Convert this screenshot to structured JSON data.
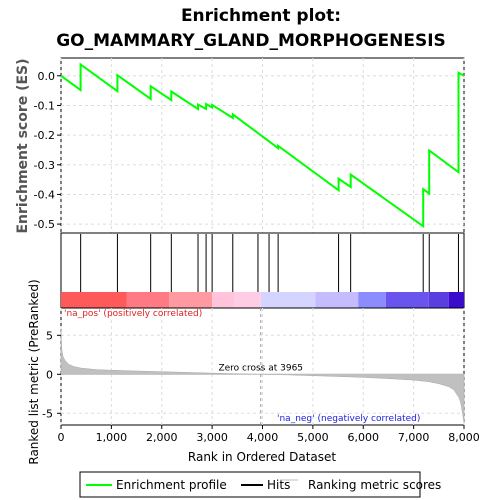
{
  "chart_data": {
    "type": "line",
    "title": "Enrichment plot:",
    "subtitle": "GO_MAMMARY_GLAND_MORPHOGENESIS",
    "es_panel": {
      "ylabel": "Enrichment score (ES)",
      "ylim": [
        -0.53,
        0.06
      ],
      "yticks": [
        0.0,
        -0.1,
        -0.2,
        -0.3,
        -0.4,
        -0.5
      ],
      "series": [
        {
          "name": "Enrichment profile",
          "color": "#00ff00",
          "x": [
            0,
            390,
            390,
            1120,
            1120,
            1780,
            1780,
            2190,
            2190,
            2720,
            2720,
            2880,
            2880,
            3000,
            3000,
            3410,
            3410,
            4130,
            4310,
            4310,
            5510,
            5510,
            5750,
            5750,
            7190,
            7190,
            7310,
            7310,
            7890,
            7890,
            8000
          ],
          "y": [
            0.0,
            -0.048,
            0.038,
            -0.052,
            0.002,
            -0.078,
            -0.035,
            -0.082,
            -0.053,
            -0.112,
            -0.097,
            -0.112,
            -0.095,
            -0.107,
            -0.098,
            -0.142,
            -0.13,
            -0.221,
            -0.244,
            -0.236,
            -0.386,
            -0.347,
            -0.375,
            -0.333,
            -0.507,
            -0.382,
            -0.397,
            -0.252,
            -0.325,
            0.01,
            0.0
          ]
        }
      ]
    },
    "hits": {
      "name": "Hits",
      "x": [
        390,
        1120,
        1780,
        2190,
        2720,
        2880,
        3000,
        3410,
        3910,
        4130,
        4310,
        5510,
        5750,
        7190,
        7310,
        7890
      ]
    },
    "ranked_panel": {
      "name": "Ranking metric scores",
      "ylabel": "Ranked list metric (PreRanked)",
      "xlabel": "Rank in Ordered Dataset",
      "xlim": [
        0,
        8000
      ],
      "xticks": [
        0,
        1000,
        2000,
        3000,
        4000,
        5000,
        6000,
        7000,
        8000
      ],
      "ylim": [
        -6.5,
        8.5
      ],
      "yticks": [
        5,
        0,
        -5
      ],
      "zero_cross": 3965,
      "profile_x": [
        0,
        15,
        40,
        80,
        150,
        250,
        400,
        700,
        1000,
        1500,
        2000,
        2500,
        3000,
        3500,
        3965,
        4500,
        5000,
        5500,
        6000,
        6500,
        7000,
        7300,
        7500,
        7700,
        7800,
        7850,
        7900,
        7930,
        7950,
        7970,
        7990,
        8000
      ],
      "profile_y": [
        5.8,
        3.2,
        2.3,
        1.8,
        1.3,
        1.0,
        0.8,
        0.6,
        0.52,
        0.42,
        0.33,
        0.24,
        0.16,
        0.08,
        0.0,
        -0.08,
        -0.18,
        -0.28,
        -0.4,
        -0.55,
        -0.75,
        -0.95,
        -1.2,
        -1.6,
        -2.0,
        -2.5,
        -3.0,
        -3.6,
        -4.2,
        -5.0,
        -5.8,
        -6.2
      ],
      "label_pos": "'na_pos' (positively correlated)",
      "label_neg": "'na_neg' (negatively correlated)",
      "zero_cross_label": "Zero cross at 3965"
    },
    "heat_bar": {
      "segments": [
        {
          "x0": 0,
          "x1": 1300,
          "color": "#ff5a5a"
        },
        {
          "x0": 1300,
          "x1": 2150,
          "color": "#ff7a82"
        },
        {
          "x0": 2150,
          "x1": 3000,
          "color": "#ff9aa0"
        },
        {
          "x0": 3000,
          "x1": 3450,
          "color": "#ffc4dc"
        },
        {
          "x0": 3450,
          "x1": 3965,
          "color": "#ffcce6"
        },
        {
          "x0": 3965,
          "x1": 5050,
          "color": "#d4d4ff"
        },
        {
          "x0": 5050,
          "x1": 5900,
          "color": "#c4bcff"
        },
        {
          "x0": 5900,
          "x1": 6450,
          "color": "#8c8cff"
        },
        {
          "x0": 6450,
          "x1": 7300,
          "color": "#6a54ee"
        },
        {
          "x0": 7300,
          "x1": 7700,
          "color": "#5a3ee0"
        },
        {
          "x0": 7700,
          "x1": 8000,
          "color": "#3c0ccc"
        }
      ]
    },
    "legend": {
      "placement": "bottom",
      "items": [
        {
          "label": "Enrichment profile",
          "color": "#00ff00"
        },
        {
          "label": "Hits",
          "color": "#000000"
        },
        {
          "label": "Ranking metric scores",
          "color": "#bbbbbb"
        }
      ]
    }
  }
}
